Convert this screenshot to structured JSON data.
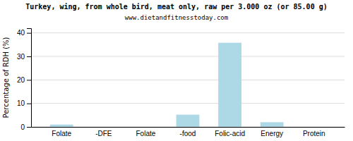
{
  "chart_data": {
    "type": "bar",
    "title": "Turkey, wing, from whole bird, meat only, raw per 3.000 oz (or 85.00 g)",
    "subtitle": "www.dietandfitnesstoday.com",
    "categories": [
      "Folate",
      "-DFE",
      "Folate",
      "-food",
      "Folic-acid",
      "Energy",
      "Protein"
    ],
    "values": [
      1.0,
      0.0,
      0.0,
      5.2,
      35.8,
      2.0,
      0.0
    ],
    "color": "#add8e6",
    "ylabel": "Percentage of RDH (%)",
    "ylim": [
      0,
      42
    ],
    "yticks": [
      0,
      10,
      20,
      30,
      40
    ],
    "grid": true
  }
}
